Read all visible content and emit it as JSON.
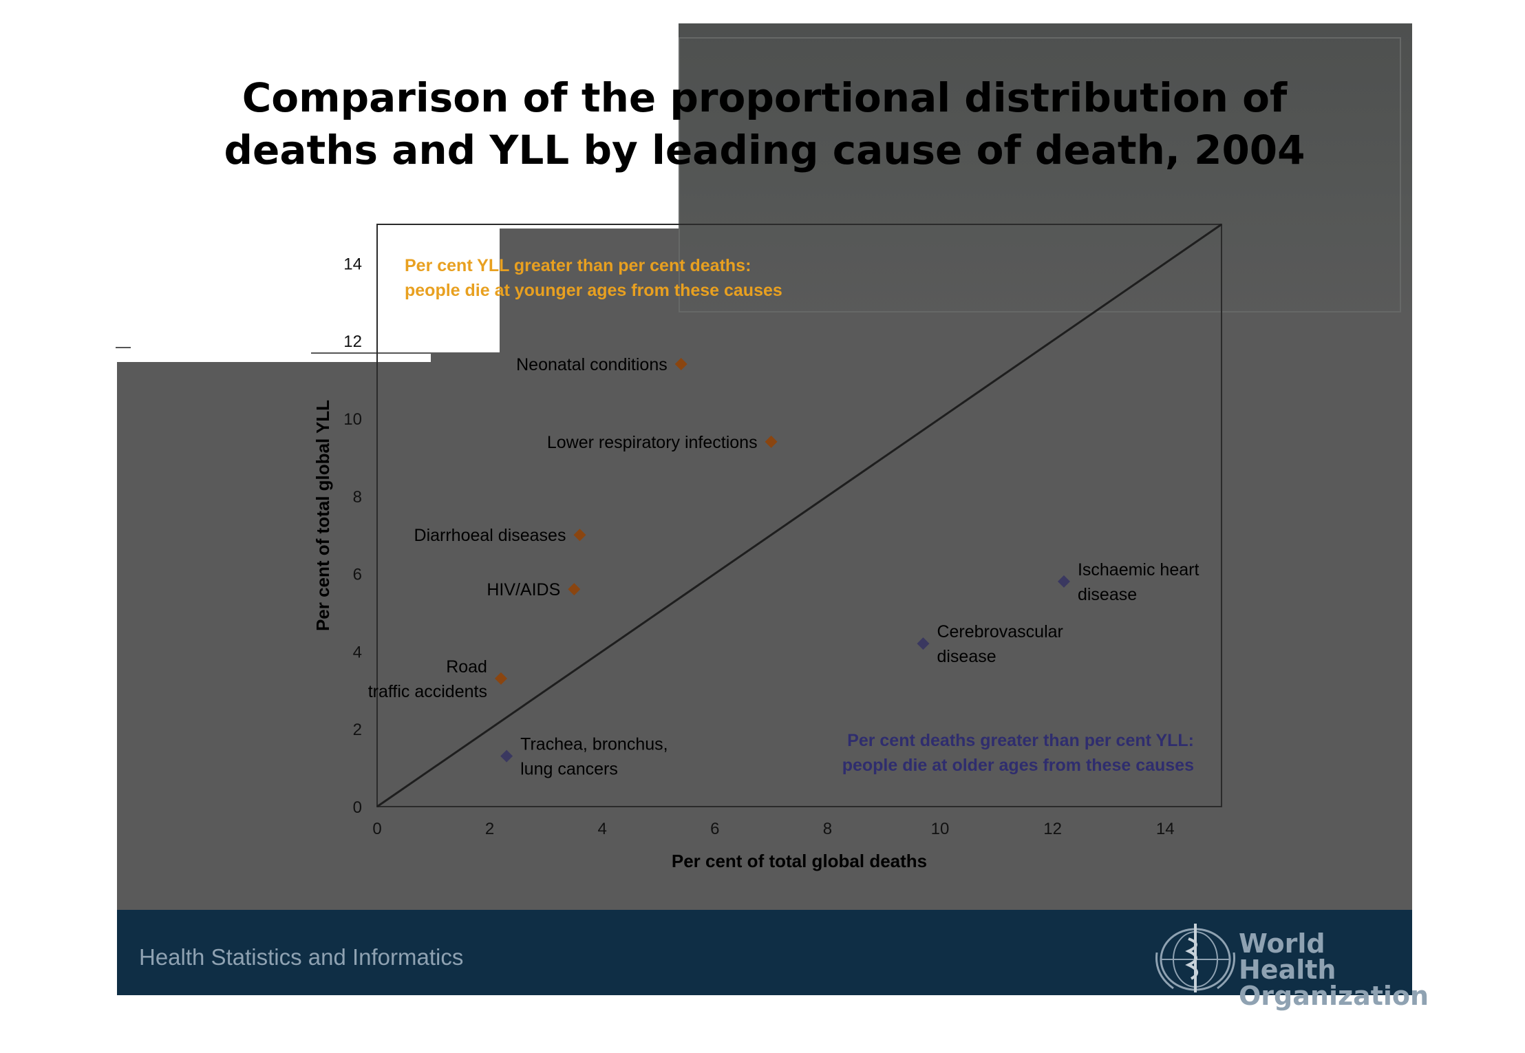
{
  "title": {
    "line1": "Comparison of the proportional distribution of",
    "line2": "deaths and YLL by leading cause of death, 2004"
  },
  "footer": {
    "department": "Health Statistics and Informatics",
    "org_line1": "World Health",
    "org_line2": "Organization"
  },
  "colors": {
    "above_line": "#8a4510",
    "above_label": "#e8a020",
    "below_line": "#3a3860",
    "below_label": "#2f2d6e",
    "footer_bg": "#0f2e45"
  },
  "chart_data": {
    "type": "scatter",
    "xlabel": "Per cent of total global deaths",
    "ylabel": "Per cent of total global YLL",
    "xlim": [
      0,
      15
    ],
    "ylim": [
      0,
      15
    ],
    "xticks": [
      0,
      2,
      4,
      6,
      8,
      10,
      12,
      14
    ],
    "yticks": [
      0,
      2,
      4,
      6,
      8,
      10,
      12,
      14
    ],
    "diagonal": true,
    "annotations": {
      "above": [
        "Per cent YLL greater than per cent deaths:",
        "people die at younger ages from these causes"
      ],
      "below": [
        "Per cent deaths greater than per cent YLL:",
        "people die at older ages from these causes"
      ]
    },
    "points": [
      {
        "label": [
          "Neonatal conditions"
        ],
        "x": 5.4,
        "y": 11.4,
        "group": "above",
        "label_side": "left"
      },
      {
        "label": [
          "Lower respiratory infections"
        ],
        "x": 7.0,
        "y": 9.4,
        "group": "above",
        "label_side": "left"
      },
      {
        "label": [
          "Diarrhoeal diseases"
        ],
        "x": 3.6,
        "y": 7.0,
        "group": "above",
        "label_side": "left"
      },
      {
        "label": [
          "HIV/AIDS"
        ],
        "x": 3.5,
        "y": 5.6,
        "group": "above",
        "label_side": "left"
      },
      {
        "label": [
          "Road",
          "traffic accidents"
        ],
        "x": 2.2,
        "y": 3.3,
        "group": "above",
        "label_side": "left"
      },
      {
        "label": [
          "Trachea, bronchus,",
          "lung cancers"
        ],
        "x": 2.3,
        "y": 1.3,
        "group": "below",
        "label_side": "right"
      },
      {
        "label": [
          "Cerebrovascular",
          "disease"
        ],
        "x": 9.7,
        "y": 4.2,
        "group": "below",
        "label_side": "right"
      },
      {
        "label": [
          "Ischaemic heart",
          "disease"
        ],
        "x": 12.2,
        "y": 5.8,
        "group": "below",
        "label_side": "right"
      }
    ]
  }
}
